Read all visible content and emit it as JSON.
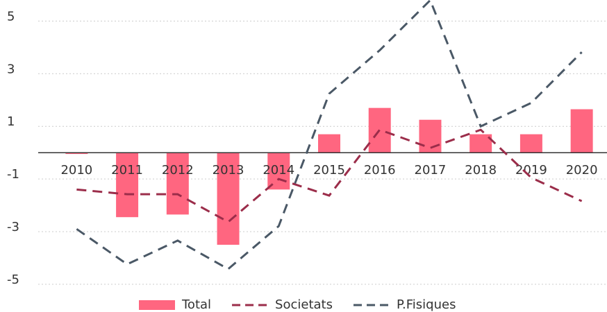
{
  "chart_data": {
    "type": "bar_line",
    "categories": [
      "2010",
      "2011",
      "2012",
      "2013",
      "2014",
      "2015",
      "2016",
      "2017",
      "2018",
      "2019",
      "2020"
    ],
    "series": [
      {
        "name": "Total",
        "type": "bar",
        "color": "#ff6680",
        "values": [
          -0.05,
          -2.45,
          -2.35,
          -3.5,
          -1.4,
          0.7,
          1.7,
          1.25,
          0.7,
          0.7,
          1.65
        ]
      },
      {
        "name": "Societats",
        "type": "line",
        "color": "#9b2d4a",
        "values": [
          -1.4,
          -1.58,
          -1.58,
          -2.63,
          -1.0,
          -1.63,
          0.87,
          0.18,
          0.87,
          -0.95,
          -1.84
        ]
      },
      {
        "name": "P.Fisiques",
        "type": "line",
        "color": "#4a5866",
        "values": [
          -2.9,
          -4.24,
          -3.34,
          -4.42,
          -2.79,
          2.24,
          3.89,
          5.79,
          1.0,
          1.89,
          3.82
        ]
      }
    ],
    "ylim": [
      -5.5,
      5.8
    ],
    "yticks": [
      5,
      3,
      1,
      -1,
      -3,
      -5
    ],
    "grid": true,
    "legend": "bottom"
  }
}
